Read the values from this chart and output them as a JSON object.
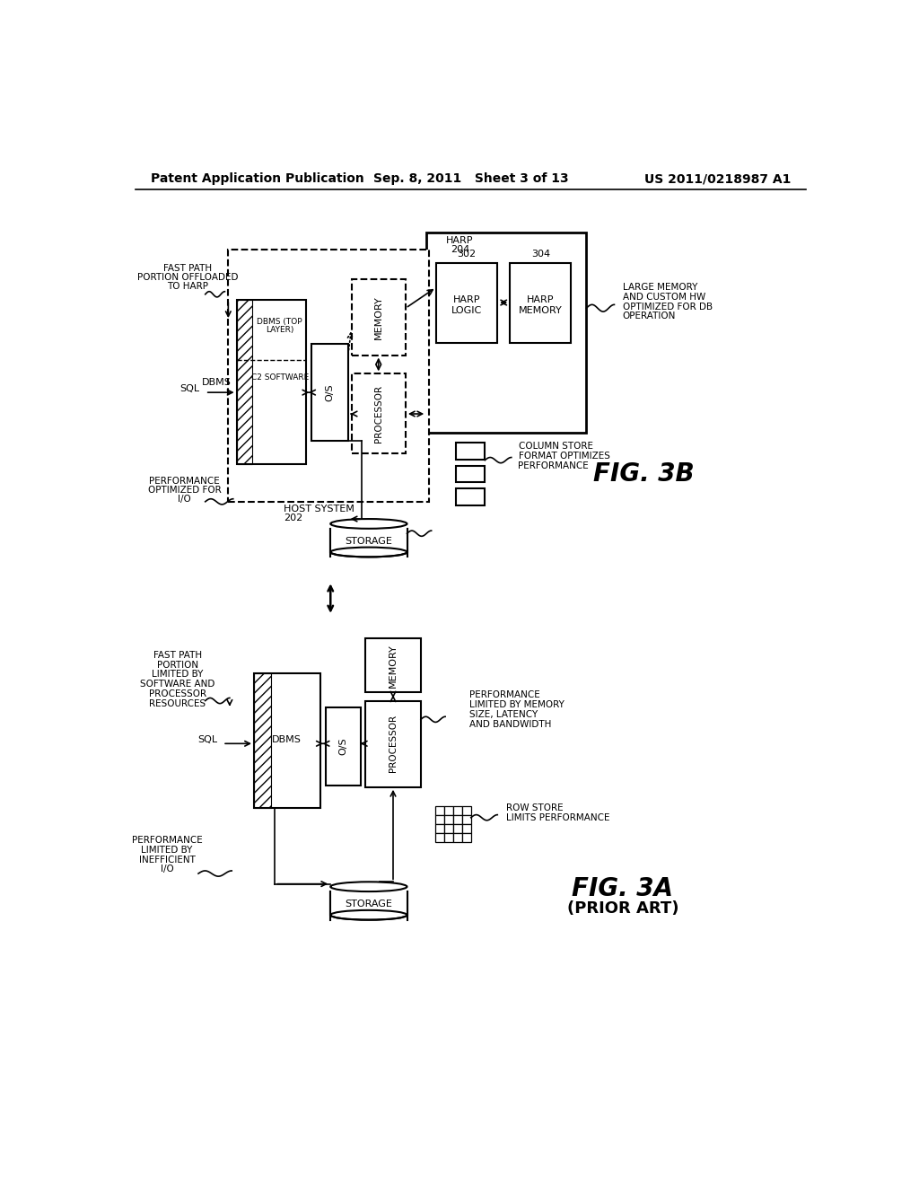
{
  "title_left": "Patent Application Publication",
  "title_mid": "Sep. 8, 2011   Sheet 3 of 13",
  "title_right": "US 2011/0218987 A1",
  "background": "#ffffff",
  "black": "#000000"
}
